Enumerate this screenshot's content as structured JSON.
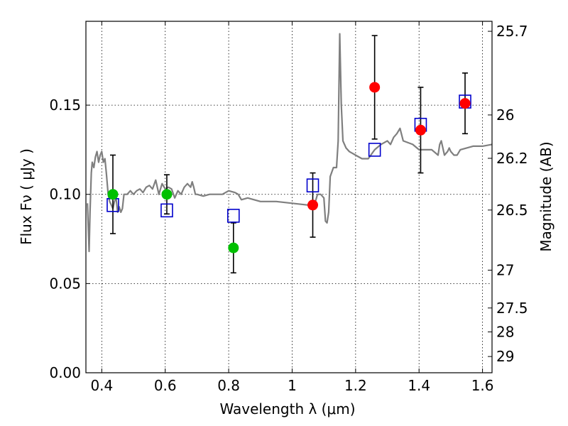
{
  "chart_data": {
    "type": "scatter",
    "xlabel": "Wavelength  λ (μm)",
    "ylabel": "Flux  Fν  ( μJy )",
    "ylabel_right": "Magnitude (AB)",
    "xlim": [
      0.35,
      1.63
    ],
    "ylim": [
      0.0,
      0.197
    ],
    "grid": true,
    "x_ticks": [
      {
        "value": 0.4,
        "label": "0.4"
      },
      {
        "value": 0.6,
        "label": "0.6"
      },
      {
        "value": 0.8,
        "label": "0.8"
      },
      {
        "value": 1.0,
        "label": "1"
      },
      {
        "value": 1.2,
        "label": "1.2"
      },
      {
        "value": 1.4,
        "label": "1.4"
      },
      {
        "value": 1.6,
        "label": "1.6"
      }
    ],
    "y_ticks": [
      {
        "value": 0.0,
        "label": "0.00"
      },
      {
        "value": 0.05,
        "label": "0.05"
      },
      {
        "value": 0.1,
        "label": "0.10"
      },
      {
        "value": 0.15,
        "label": "0.15"
      }
    ],
    "right_ticks": [
      {
        "flux": 0.1914,
        "label": "25.7"
      },
      {
        "flux": 0.1445,
        "label": "26"
      },
      {
        "flux": 0.1202,
        "label": "26.2"
      },
      {
        "flux": 0.0912,
        "label": "26.5"
      },
      {
        "flux": 0.0575,
        "label": "27"
      },
      {
        "flux": 0.0363,
        "label": "27.5"
      },
      {
        "flux": 0.0229,
        "label": "28"
      },
      {
        "flux": 0.0091,
        "label": "29"
      }
    ],
    "colors": {
      "model": "#7f7f7f",
      "green": "#00c000",
      "red": "#ff0000",
      "model_box": "#0000cc",
      "errorbar": "#000000"
    },
    "series": [
      {
        "kind": "model_spectrum",
        "x": [
          0.355,
          0.36,
          0.363,
          0.367,
          0.37,
          0.375,
          0.38,
          0.385,
          0.39,
          0.395,
          0.4,
          0.405,
          0.41,
          0.415,
          0.42,
          0.425,
          0.43,
          0.435,
          0.44,
          0.445,
          0.45,
          0.455,
          0.46,
          0.465,
          0.47,
          0.48,
          0.49,
          0.5,
          0.51,
          0.52,
          0.53,
          0.54,
          0.55,
          0.56,
          0.57,
          0.58,
          0.59,
          0.6,
          0.61,
          0.62,
          0.63,
          0.64,
          0.65,
          0.66,
          0.67,
          0.68,
          0.685,
          0.69,
          0.695,
          0.7,
          0.72,
          0.74,
          0.76,
          0.78,
          0.8,
          0.82,
          0.83,
          0.84,
          0.86,
          0.88,
          0.9,
          0.95,
          1.0,
          1.05,
          1.07,
          1.08,
          1.09,
          1.1,
          1.105,
          1.11,
          1.115,
          1.12,
          1.13,
          1.14,
          1.145,
          1.15,
          1.155,
          1.16,
          1.17,
          1.18,
          1.19,
          1.2,
          1.22,
          1.24,
          1.26,
          1.28,
          1.3,
          1.31,
          1.32,
          1.33,
          1.34,
          1.35,
          1.38,
          1.4,
          1.44,
          1.46,
          1.465,
          1.47,
          1.48,
          1.49,
          1.495,
          1.5,
          1.51,
          1.52,
          1.53,
          1.55,
          1.57,
          1.6,
          1.63
        ],
        "y": [
          0.095,
          0.068,
          0.09,
          0.112,
          0.118,
          0.115,
          0.121,
          0.124,
          0.118,
          0.122,
          0.124,
          0.118,
          0.12,
          0.111,
          0.1,
          0.096,
          0.094,
          0.092,
          0.096,
          0.098,
          0.09,
          0.093,
          0.09,
          0.092,
          0.1,
          0.1,
          0.102,
          0.1,
          0.102,
          0.103,
          0.101,
          0.104,
          0.105,
          0.103,
          0.108,
          0.1,
          0.106,
          0.103,
          0.104,
          0.103,
          0.098,
          0.102,
          0.1,
          0.104,
          0.106,
          0.104,
          0.107,
          0.104,
          0.1,
          0.1,
          0.099,
          0.1,
          0.1,
          0.1,
          0.102,
          0.101,
          0.1,
          0.097,
          0.098,
          0.097,
          0.096,
          0.096,
          0.095,
          0.094,
          0.094,
          0.1,
          0.1,
          0.098,
          0.085,
          0.084,
          0.09,
          0.11,
          0.115,
          0.115,
          0.13,
          0.19,
          0.15,
          0.13,
          0.126,
          0.124,
          0.123,
          0.122,
          0.12,
          0.12,
          0.125,
          0.128,
          0.13,
          0.128,
          0.132,
          0.134,
          0.137,
          0.13,
          0.128,
          0.125,
          0.125,
          0.122,
          0.128,
          0.13,
          0.122,
          0.124,
          0.126,
          0.124,
          0.122,
          0.122,
          0.125,
          0.126,
          0.127,
          0.127,
          0.128
        ]
      },
      {
        "kind": "model_boxes",
        "x": [
          0.435,
          0.605,
          0.815,
          1.065,
          1.26,
          1.405,
          1.545
        ],
        "y": [
          0.094,
          0.091,
          0.088,
          0.105,
          0.125,
          0.139,
          0.152
        ]
      },
      {
        "kind": "observed",
        "color": "green",
        "x": [
          0.435,
          0.605,
          0.815
        ],
        "y": [
          0.1,
          0.1,
          0.07
        ],
        "err": [
          0.022,
          0.011,
          0.014
        ]
      },
      {
        "kind": "observed",
        "color": "red",
        "x": [
          1.065,
          1.26,
          1.405,
          1.545
        ],
        "y": [
          0.094,
          0.16,
          0.136,
          0.151
        ],
        "err": [
          0.018,
          0.029,
          0.024,
          0.017
        ]
      }
    ]
  }
}
